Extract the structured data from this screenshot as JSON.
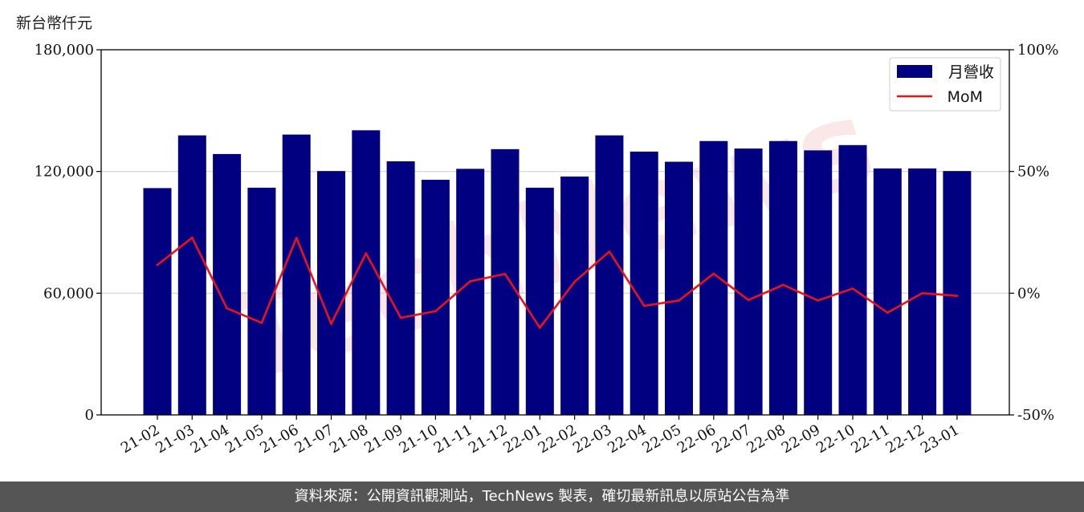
{
  "y_unit_label": "新台幣仟元",
  "footer_text": "資料來源：公開資訊觀測站，TechNews 製表，確切最新訊息以原站公告為準",
  "watermark_text": "TechNews",
  "colors": {
    "bar": "#000080",
    "line": "#e8141b",
    "grid": "#d0d0d0",
    "footer_bg": "#555555"
  },
  "chart_data": {
    "type": "bar",
    "categories": [
      "21-02",
      "21-03",
      "21-04",
      "21-05",
      "21-06",
      "21-07",
      "21-08",
      "21-09",
      "21-10",
      "21-11",
      "21-12",
      "22-01",
      "22-02",
      "22-03",
      "22-04",
      "22-05",
      "22-06",
      "22-07",
      "22-08",
      "22-09",
      "22-10",
      "22-11",
      "22-12",
      "23-01"
    ],
    "series": [
      {
        "name": "月營收",
        "type": "bar",
        "axis": "left",
        "values": [
          111800,
          137800,
          128600,
          112000,
          138200,
          120200,
          140300,
          125000,
          115900,
          121300,
          131000,
          112000,
          117500,
          137800,
          129800,
          124800,
          135000,
          131300,
          135000,
          130400,
          133000,
          121500,
          121500,
          120200
        ]
      },
      {
        "name": "MoM",
        "type": "line",
        "axis": "right",
        "unit": "%",
        "values": [
          11.6,
          22.8,
          -6.2,
          -12.2,
          22.7,
          -12.6,
          16.4,
          -10.1,
          -7.4,
          4.9,
          7.9,
          -14.2,
          4.7,
          17.1,
          -5.2,
          -3.0,
          8.0,
          -2.8,
          3.4,
          -3.0,
          1.9,
          -8.0,
          0.0,
          -1.1
        ]
      }
    ],
    "y_left": {
      "ylim": [
        0,
        180000
      ],
      "ticks": [
        0,
        60000,
        120000,
        180000
      ],
      "tick_labels": [
        "0",
        "60,000",
        "120,000",
        "180,000"
      ]
    },
    "y_right": {
      "ylim": [
        -50,
        100
      ],
      "ticks": [
        -50,
        0,
        50,
        100
      ],
      "tick_labels": [
        "-50%",
        "0%",
        "50%",
        "100%"
      ]
    },
    "grid": "horizontal",
    "legend": "top-right"
  }
}
